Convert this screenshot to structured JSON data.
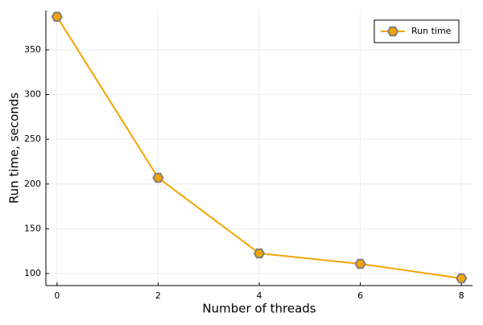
{
  "chart_data": {
    "type": "line",
    "x_label": "Number of threads",
    "y_label": "Run time, seconds",
    "x": [
      0,
      2,
      4,
      6,
      8
    ],
    "series": [
      {
        "name": "Run time",
        "color": "#f5a300",
        "marker_edge": "#7f7f7f",
        "values": [
          387,
          207,
          122.5,
          110.8,
          94.6
        ]
      }
    ],
    "xlim": [
      -0.22,
      8.22
    ],
    "xticks": [
      0,
      2,
      4,
      6,
      8
    ],
    "ylim": [
      86.5,
      394
    ],
    "yticks": [
      100,
      150,
      200,
      250,
      300,
      350
    ],
    "grid": true,
    "legend": "top-right"
  }
}
